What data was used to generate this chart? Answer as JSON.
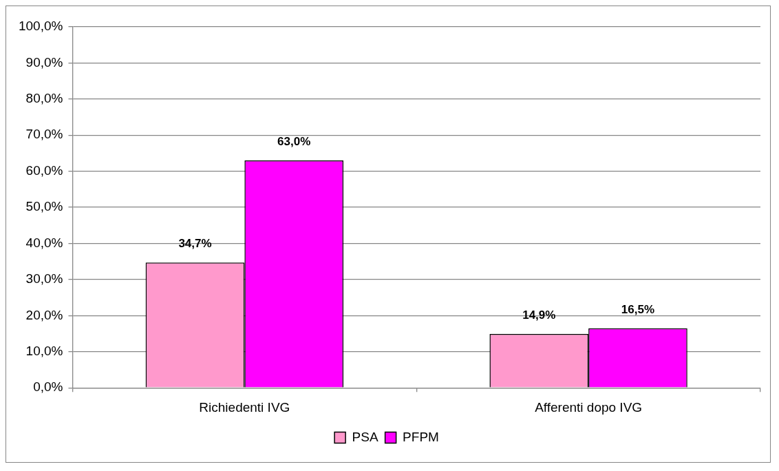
{
  "chart_data": {
    "type": "bar",
    "categories": [
      "Richiedenti IVG",
      "Afferenti dopo IVG"
    ],
    "series": [
      {
        "name": "PSA",
        "color": "#ff99cc",
        "values": [
          34.7,
          14.9
        ],
        "value_labels": [
          "34,7%",
          "14,9%"
        ]
      },
      {
        "name": "PFPM",
        "color": "#ff00ff",
        "values": [
          63.0,
          16.5
        ],
        "value_labels": [
          "63,0%",
          "16,5%"
        ]
      }
    ],
    "ylim": [
      0,
      100
    ],
    "yticks": [
      {
        "value": 0,
        "label": "0,0%"
      },
      {
        "value": 10,
        "label": "10,0%"
      },
      {
        "value": 20,
        "label": "20,0%"
      },
      {
        "value": 30,
        "label": "30,0%"
      },
      {
        "value": 40,
        "label": "40,0%"
      },
      {
        "value": 50,
        "label": "50,0%"
      },
      {
        "value": 60,
        "label": "60,0%"
      },
      {
        "value": 70,
        "label": "70,0%"
      },
      {
        "value": 80,
        "label": "80,0%"
      },
      {
        "value": 90,
        "label": "90,0%"
      },
      {
        "value": 100,
        "label": "100,0%"
      }
    ],
    "grid": "y",
    "legend": "bottom"
  }
}
